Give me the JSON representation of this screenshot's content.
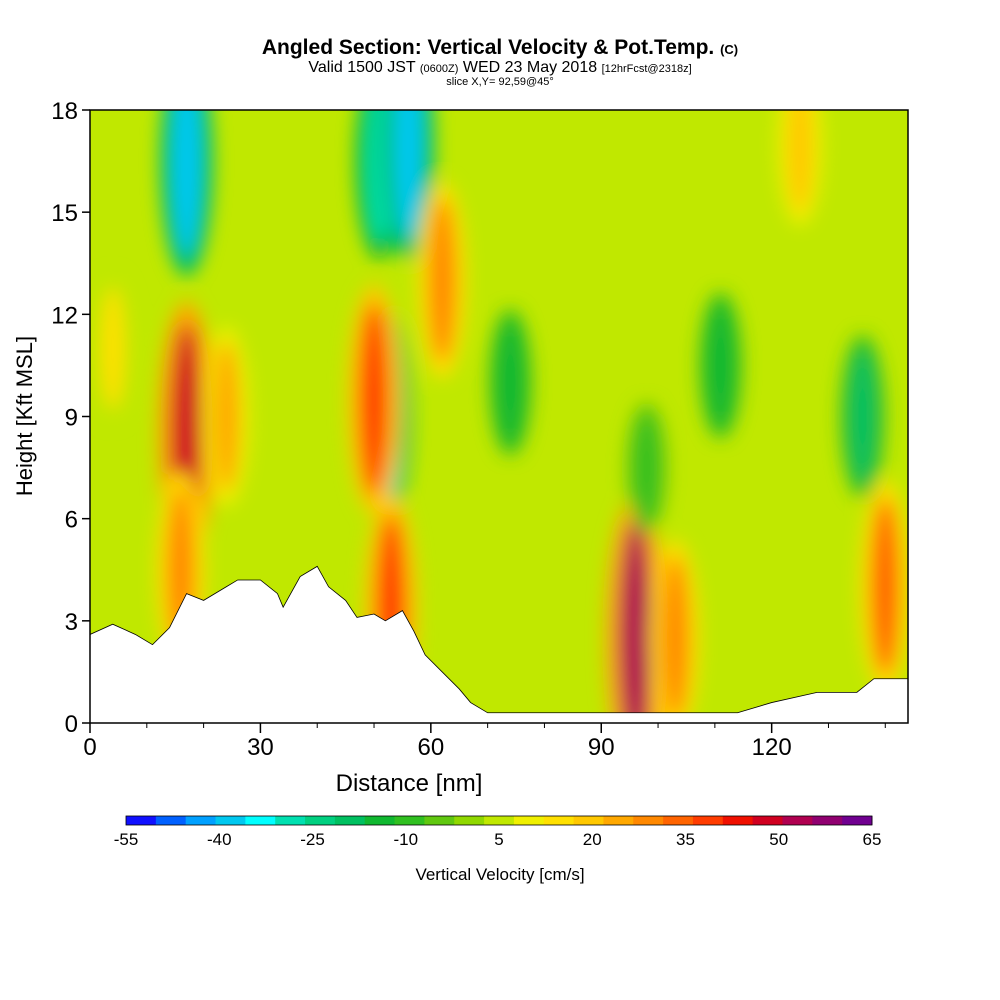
{
  "titles": {
    "main": "Angled Section: Vertical Velocity & Pot.Temp.",
    "main_unit": "(C)",
    "valid_prefix": "Valid 1500 JST",
    "valid_utc": "(0600Z)",
    "valid_date": "WED 23 May 2018",
    "forecast": "[12hrFcst@2318z]",
    "slice": "slice X,Y= 92,59@45°"
  },
  "colors": {
    "axis": "#000000",
    "terrain": "#ffffff"
  },
  "chart_data": {
    "type": "heatmap",
    "title": "Angled Section: Vertical Velocity & Pot.Temp.",
    "xlabel": "Distance [nm]",
    "ylabel": "Height [Kft MSL]",
    "xlim": [
      0,
      144
    ],
    "ylim": [
      0,
      18
    ],
    "x_ticks": [
      "0",
      "30",
      "60",
      "90",
      "120"
    ],
    "x_tick_values": [
      0,
      30,
      60,
      90,
      120
    ],
    "y_ticks": [
      "0",
      "3",
      "6",
      "9",
      "12",
      "15",
      "18"
    ],
    "y_tick_values": [
      0,
      3,
      6,
      9,
      12,
      15,
      18
    ],
    "colorbar": {
      "label": "Vertical Velocity [cm/s]",
      "min": -55,
      "max": 65,
      "step": 5,
      "tick_labels": [
        "-55",
        "-40",
        "-25",
        "-10",
        "5",
        "20",
        "35",
        "50",
        "65"
      ],
      "tick_values": [
        -55,
        -40,
        -25,
        -10,
        5,
        20,
        35,
        50,
        65
      ],
      "colors": [
        "#1010ff",
        "#0060ff",
        "#00a0ff",
        "#00c8f0",
        "#00ffff",
        "#00e0b0",
        "#00d080",
        "#00c060",
        "#10b830",
        "#30c020",
        "#60c810",
        "#90d800",
        "#c0e800",
        "#f0f000",
        "#ffe000",
        "#ffc800",
        "#ffa800",
        "#ff8800",
        "#ff6400",
        "#ff3c00",
        "#f01000",
        "#d00020",
        "#b00050",
        "#900070",
        "#700090"
      ]
    },
    "terrain_profile": {
      "x": [
        0,
        4,
        8,
        11,
        14,
        17,
        20,
        24,
        26,
        30,
        33,
        34,
        37,
        40,
        42,
        45,
        47,
        50,
        52,
        55,
        57,
        59,
        62,
        65,
        67,
        70,
        80,
        90,
        100,
        110,
        114,
        120,
        128,
        135,
        138,
        144
      ],
      "y": [
        2.6,
        2.9,
        2.6,
        2.3,
        2.8,
        3.8,
        3.6,
        4.0,
        4.2,
        4.2,
        3.8,
        3.4,
        4.3,
        4.6,
        4.0,
        3.6,
        3.1,
        3.2,
        3.0,
        3.3,
        2.7,
        2.0,
        1.5,
        1.0,
        0.6,
        0.3,
        0.3,
        0.3,
        0.3,
        0.3,
        0.3,
        0.6,
        0.9,
        0.9,
        1.3,
        1.3
      ]
    },
    "velocity_features": [
      {
        "x": 17,
        "y": 8.5,
        "value": 50
      },
      {
        "x": 16,
        "y": 4.5,
        "value": 30
      },
      {
        "x": 24,
        "y": 9.0,
        "value": 25
      },
      {
        "x": 17,
        "y": 16.5,
        "value": -40
      },
      {
        "x": 51,
        "y": 16.5,
        "value": -30
      },
      {
        "x": 56,
        "y": 17.0,
        "value": -40
      },
      {
        "x": 52,
        "y": 9.0,
        "value": -35
      },
      {
        "x": 50,
        "y": 9.5,
        "value": 40
      },
      {
        "x": 53,
        "y": 3.3,
        "value": 40
      },
      {
        "x": 62,
        "y": 13.0,
        "value": 30
      },
      {
        "x": 96,
        "y": 2.5,
        "value": 55
      },
      {
        "x": 103,
        "y": 2.5,
        "value": 30
      },
      {
        "x": 140,
        "y": 4.0,
        "value": 35
      },
      {
        "x": 74,
        "y": 10.0,
        "value": -15
      },
      {
        "x": 111,
        "y": 10.5,
        "value": -15
      },
      {
        "x": 136,
        "y": 9.0,
        "value": -20
      },
      {
        "x": 4,
        "y": 11.0,
        "value": 15
      },
      {
        "x": 98,
        "y": 7.5,
        "value": -10
      },
      {
        "x": 125,
        "y": 17.0,
        "value": 20
      }
    ]
  }
}
